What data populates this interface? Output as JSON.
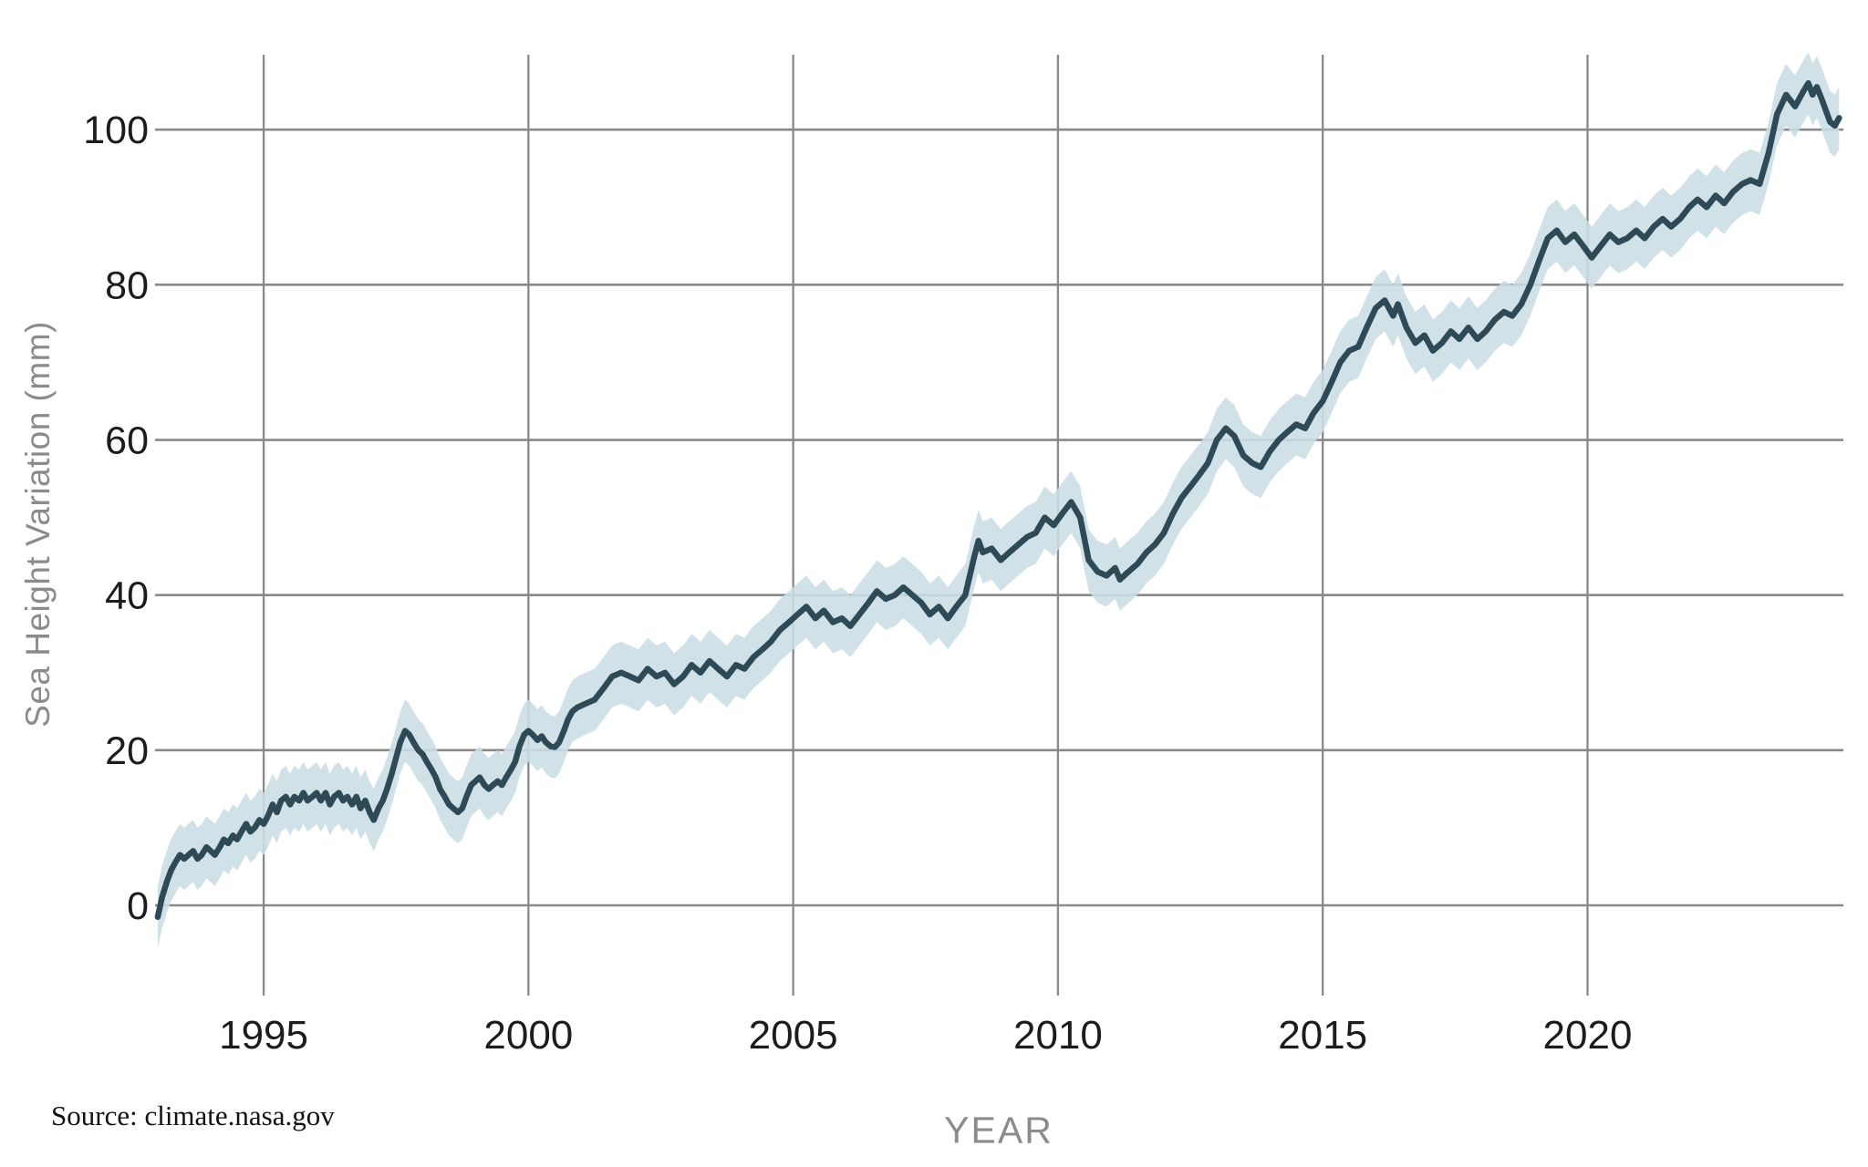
{
  "chart_data": {
    "type": "line",
    "title": "",
    "xlabel": "YEAR",
    "ylabel": "Sea Height Variation (mm)",
    "source": "Source: climate.nasa.gov",
    "x_ticks": [
      1995,
      2000,
      2005,
      2010,
      2015,
      2020
    ],
    "y_ticks": [
      0,
      20,
      40,
      60,
      80,
      100
    ],
    "xlim": [
      1992.95,
      2024.9
    ],
    "ylim": [
      -8,
      110
    ],
    "grid": true,
    "legend": "none",
    "colors": {
      "line": "#2e4a56",
      "band": "#cbdde5",
      "grid": "#898989",
      "tick_label": "#1c1c1c",
      "axis_title": "#8b8b8b",
      "background": "#ffffff"
    },
    "uncertainty_band_mm": 4,
    "series": [
      {
        "name": "Sea height variation (mm)",
        "points": [
          [
            1993.0,
            -1.5
          ],
          [
            1993.08,
            1.0
          ],
          [
            1993.17,
            3.0
          ],
          [
            1993.25,
            4.5
          ],
          [
            1993.33,
            5.5
          ],
          [
            1993.42,
            6.5
          ],
          [
            1993.5,
            6.0
          ],
          [
            1993.58,
            6.5
          ],
          [
            1993.67,
            7.0
          ],
          [
            1993.75,
            6.0
          ],
          [
            1993.83,
            6.5
          ],
          [
            1993.92,
            7.5
          ],
          [
            1994.0,
            7.0
          ],
          [
            1994.08,
            6.5
          ],
          [
            1994.17,
            7.5
          ],
          [
            1994.25,
            8.5
          ],
          [
            1994.33,
            8.0
          ],
          [
            1994.42,
            9.0
          ],
          [
            1994.5,
            8.5
          ],
          [
            1994.58,
            9.5
          ],
          [
            1994.67,
            10.5
          ],
          [
            1994.75,
            9.5
          ],
          [
            1994.83,
            10.0
          ],
          [
            1994.92,
            11.0
          ],
          [
            1995.0,
            10.5
          ],
          [
            1995.08,
            11.5
          ],
          [
            1995.17,
            13.0
          ],
          [
            1995.25,
            12.0
          ],
          [
            1995.33,
            13.5
          ],
          [
            1995.42,
            14.0
          ],
          [
            1995.5,
            13.0
          ],
          [
            1995.58,
            14.0
          ],
          [
            1995.67,
            13.5
          ],
          [
            1995.75,
            14.5
          ],
          [
            1995.83,
            13.5
          ],
          [
            1995.92,
            14.0
          ],
          [
            1996.0,
            14.5
          ],
          [
            1996.08,
            13.5
          ],
          [
            1996.17,
            14.5
          ],
          [
            1996.25,
            13.0
          ],
          [
            1996.33,
            14.0
          ],
          [
            1996.42,
            14.5
          ],
          [
            1996.5,
            13.5
          ],
          [
            1996.58,
            14.0
          ],
          [
            1996.67,
            13.0
          ],
          [
            1996.75,
            14.0
          ],
          [
            1996.83,
            12.5
          ],
          [
            1996.92,
            13.5
          ],
          [
            1997.0,
            12.0
          ],
          [
            1997.08,
            11.0
          ],
          [
            1997.17,
            12.5
          ],
          [
            1997.25,
            13.5
          ],
          [
            1997.33,
            15.0
          ],
          [
            1997.42,
            17.0
          ],
          [
            1997.5,
            19.0
          ],
          [
            1997.58,
            21.0
          ],
          [
            1997.67,
            22.5
          ],
          [
            1997.75,
            22.0
          ],
          [
            1997.83,
            21.0
          ],
          [
            1997.92,
            20.0
          ],
          [
            1998.0,
            19.5
          ],
          [
            1998.08,
            18.5
          ],
          [
            1998.17,
            17.5
          ],
          [
            1998.25,
            16.5
          ],
          [
            1998.33,
            15.0
          ],
          [
            1998.42,
            14.0
          ],
          [
            1998.5,
            13.0
          ],
          [
            1998.58,
            12.5
          ],
          [
            1998.67,
            12.0
          ],
          [
            1998.75,
            12.5
          ],
          [
            1998.83,
            14.0
          ],
          [
            1998.92,
            15.5
          ],
          [
            1999.0,
            16.0
          ],
          [
            1999.08,
            16.5
          ],
          [
            1999.17,
            15.5
          ],
          [
            1999.25,
            15.0
          ],
          [
            1999.33,
            15.5
          ],
          [
            1999.42,
            16.0
          ],
          [
            1999.5,
            15.5
          ],
          [
            1999.58,
            16.5
          ],
          [
            1999.67,
            17.5
          ],
          [
            1999.75,
            18.5
          ],
          [
            1999.83,
            20.5
          ],
          [
            1999.92,
            22.0
          ],
          [
            2000.0,
            22.5
          ],
          [
            2000.08,
            22.0
          ],
          [
            2000.17,
            21.3
          ],
          [
            2000.25,
            21.8
          ],
          [
            2000.33,
            21.0
          ],
          [
            2000.42,
            20.5
          ],
          [
            2000.5,
            20.4
          ],
          [
            2000.58,
            21.0
          ],
          [
            2000.67,
            22.5
          ],
          [
            2000.75,
            24.0
          ],
          [
            2000.83,
            25.0
          ],
          [
            2000.92,
            25.5
          ],
          [
            2001.08,
            26.0
          ],
          [
            2001.25,
            26.5
          ],
          [
            2001.42,
            28.0
          ],
          [
            2001.58,
            29.5
          ],
          [
            2001.75,
            30.0
          ],
          [
            2001.92,
            29.5
          ],
          [
            2002.08,
            29.0
          ],
          [
            2002.25,
            30.5
          ],
          [
            2002.42,
            29.5
          ],
          [
            2002.58,
            30.0
          ],
          [
            2002.75,
            28.5
          ],
          [
            2002.92,
            29.5
          ],
          [
            2003.08,
            31.0
          ],
          [
            2003.25,
            30.0
          ],
          [
            2003.42,
            31.5
          ],
          [
            2003.58,
            30.5
          ],
          [
            2003.75,
            29.5
          ],
          [
            2003.92,
            31.0
          ],
          [
            2004.08,
            30.5
          ],
          [
            2004.25,
            32.0
          ],
          [
            2004.42,
            33.0
          ],
          [
            2004.58,
            34.0
          ],
          [
            2004.75,
            35.5
          ],
          [
            2004.92,
            36.5
          ],
          [
            2005.08,
            37.5
          ],
          [
            2005.25,
            38.5
          ],
          [
            2005.42,
            37.0
          ],
          [
            2005.58,
            38.0
          ],
          [
            2005.75,
            36.5
          ],
          [
            2005.92,
            37.0
          ],
          [
            2006.08,
            36.0
          ],
          [
            2006.25,
            37.5
          ],
          [
            2006.42,
            39.0
          ],
          [
            2006.58,
            40.5
          ],
          [
            2006.75,
            39.5
          ],
          [
            2006.92,
            40.0
          ],
          [
            2007.08,
            41.0
          ],
          [
            2007.25,
            40.0
          ],
          [
            2007.42,
            39.0
          ],
          [
            2007.58,
            37.5
          ],
          [
            2007.75,
            38.5
          ],
          [
            2007.92,
            37.0
          ],
          [
            2008.08,
            38.5
          ],
          [
            2008.25,
            40.0
          ],
          [
            2008.42,
            45.0
          ],
          [
            2008.5,
            47.0
          ],
          [
            2008.58,
            45.5
          ],
          [
            2008.75,
            46.0
          ],
          [
            2008.92,
            44.5
          ],
          [
            2009.08,
            45.5
          ],
          [
            2009.25,
            46.5
          ],
          [
            2009.42,
            47.5
          ],
          [
            2009.58,
            48.0
          ],
          [
            2009.75,
            50.0
          ],
          [
            2009.92,
            49.0
          ],
          [
            2010.08,
            50.5
          ],
          [
            2010.25,
            52.0
          ],
          [
            2010.42,
            50.0
          ],
          [
            2010.58,
            44.5
          ],
          [
            2010.75,
            43.0
          ],
          [
            2010.92,
            42.5
          ],
          [
            2011.08,
            43.5
          ],
          [
            2011.17,
            42.0
          ],
          [
            2011.33,
            43.0
          ],
          [
            2011.5,
            44.0
          ],
          [
            2011.67,
            45.5
          ],
          [
            2011.83,
            46.5
          ],
          [
            2012.0,
            48.0
          ],
          [
            2012.17,
            50.5
          ],
          [
            2012.33,
            52.5
          ],
          [
            2012.5,
            54.0
          ],
          [
            2012.67,
            55.5
          ],
          [
            2012.83,
            57.0
          ],
          [
            2013.0,
            60.0
          ],
          [
            2013.17,
            61.5
          ],
          [
            2013.33,
            60.5
          ],
          [
            2013.5,
            58.0
          ],
          [
            2013.67,
            57.0
          ],
          [
            2013.83,
            56.5
          ],
          [
            2014.0,
            58.5
          ],
          [
            2014.17,
            60.0
          ],
          [
            2014.33,
            61.0
          ],
          [
            2014.5,
            62.0
          ],
          [
            2014.67,
            61.5
          ],
          [
            2014.83,
            63.5
          ],
          [
            2015.0,
            65.0
          ],
          [
            2015.17,
            67.5
          ],
          [
            2015.33,
            70.0
          ],
          [
            2015.5,
            71.5
          ],
          [
            2015.67,
            72.0
          ],
          [
            2015.83,
            74.5
          ],
          [
            2016.0,
            77.0
          ],
          [
            2016.17,
            78.0
          ],
          [
            2016.33,
            76.0
          ],
          [
            2016.42,
            77.5
          ],
          [
            2016.58,
            74.5
          ],
          [
            2016.75,
            72.5
          ],
          [
            2016.92,
            73.5
          ],
          [
            2017.08,
            71.5
          ],
          [
            2017.25,
            72.5
          ],
          [
            2017.42,
            74.0
          ],
          [
            2017.58,
            73.0
          ],
          [
            2017.75,
            74.5
          ],
          [
            2017.92,
            73.0
          ],
          [
            2018.08,
            74.0
          ],
          [
            2018.25,
            75.5
          ],
          [
            2018.42,
            76.5
          ],
          [
            2018.58,
            76.0
          ],
          [
            2018.75,
            77.5
          ],
          [
            2018.92,
            80.0
          ],
          [
            2019.08,
            83.0
          ],
          [
            2019.25,
            86.0
          ],
          [
            2019.42,
            87.0
          ],
          [
            2019.58,
            85.5
          ],
          [
            2019.75,
            86.5
          ],
          [
            2019.92,
            85.0
          ],
          [
            2020.08,
            83.5
          ],
          [
            2020.25,
            85.0
          ],
          [
            2020.42,
            86.5
          ],
          [
            2020.58,
            85.5
          ],
          [
            2020.75,
            86.0
          ],
          [
            2020.92,
            87.0
          ],
          [
            2021.08,
            86.0
          ],
          [
            2021.25,
            87.5
          ],
          [
            2021.42,
            88.5
          ],
          [
            2021.58,
            87.5
          ],
          [
            2021.75,
            88.5
          ],
          [
            2021.92,
            90.0
          ],
          [
            2022.08,
            91.0
          ],
          [
            2022.25,
            90.0
          ],
          [
            2022.42,
            91.5
          ],
          [
            2022.58,
            90.5
          ],
          [
            2022.75,
            92.0
          ],
          [
            2022.92,
            93.0
          ],
          [
            2023.08,
            93.5
          ],
          [
            2023.25,
            93.0
          ],
          [
            2023.42,
            97.0
          ],
          [
            2023.58,
            102.0
          ],
          [
            2023.75,
            104.5
          ],
          [
            2023.92,
            103.0
          ],
          [
            2024.08,
            105.0
          ],
          [
            2024.17,
            106.0
          ],
          [
            2024.25,
            104.5
          ],
          [
            2024.33,
            105.5
          ],
          [
            2024.42,
            104.0
          ],
          [
            2024.5,
            102.5
          ],
          [
            2024.58,
            101.0
          ],
          [
            2024.67,
            100.5
          ],
          [
            2024.75,
            101.5
          ]
        ]
      }
    ]
  }
}
